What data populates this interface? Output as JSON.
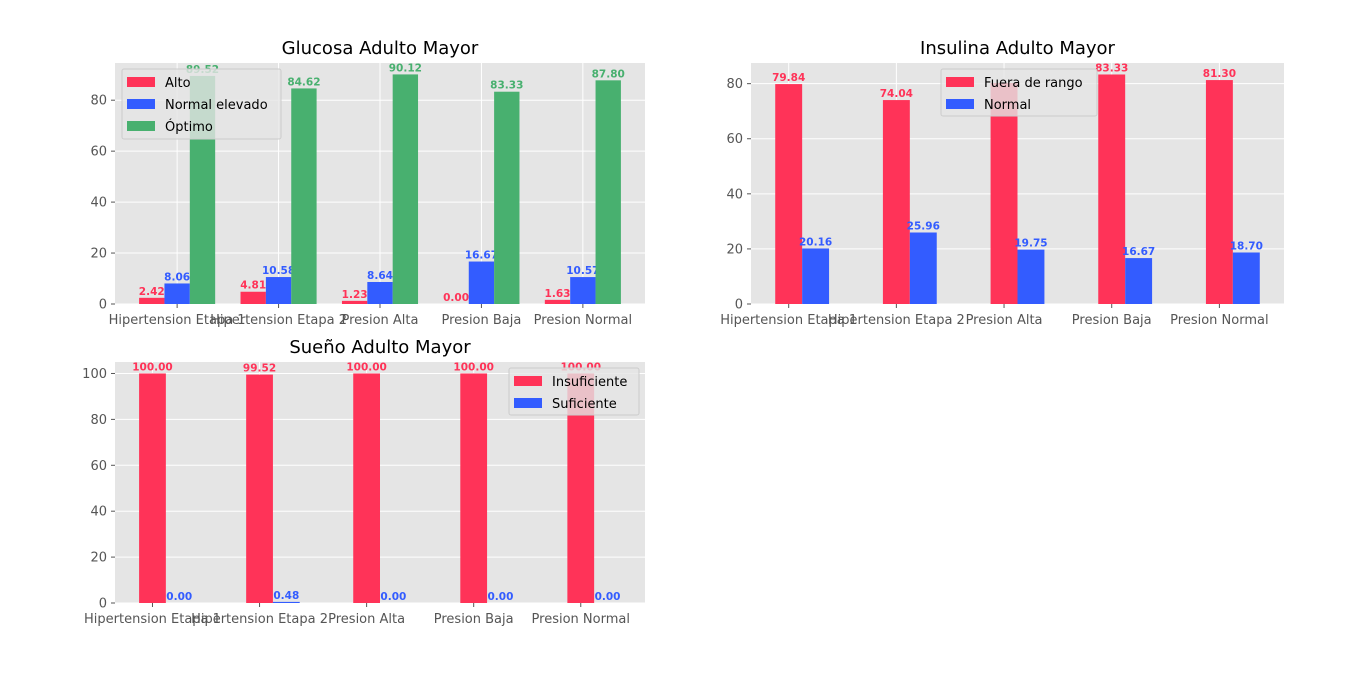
{
  "chart_data": [
    {
      "type": "bar",
      "title": "Glucosa Adulto Mayor",
      "categories": [
        "Hipertension Etapa 1",
        "Hipertension Etapa 2",
        "Presion Alta",
        "Presion Baja",
        "Presion Normal"
      ],
      "series": [
        {
          "name": "Alto",
          "color": "#ff3358",
          "values": [
            2.42,
            4.81,
            1.23,
            0.0,
            1.63
          ],
          "labels": [
            "2.42",
            "4.81",
            "1.23",
            "0.00",
            "1.63"
          ]
        },
        {
          "name": "Normal elevado",
          "color": "#335cff",
          "values": [
            8.06,
            10.58,
            8.64,
            16.67,
            10.57
          ],
          "labels": [
            "8.06",
            "10.58",
            "8.64",
            "16.67",
            "10.57"
          ]
        },
        {
          "name": "Óptimo",
          "color": "#48b06f",
          "values": [
            89.52,
            84.62,
            90.12,
            83.33,
            87.8
          ],
          "labels": [
            "89.52",
            "84.62",
            "90.12",
            "83.33",
            "87.80"
          ]
        }
      ],
      "ylim": [
        0,
        94.6
      ],
      "yticks": [
        0,
        20,
        40,
        60,
        80
      ],
      "grid": true,
      "legend_position": "top-left"
    },
    {
      "type": "bar",
      "title": "Insulina Adulto Mayor",
      "categories": [
        "Hipertension Etapa 1",
        "Hipertension Etapa 2",
        "Presion Alta",
        "Presion Baja",
        "Presion Normal"
      ],
      "series": [
        {
          "name": "Fuera de rango",
          "color": "#ff3358",
          "values": [
            79.84,
            74.04,
            80.25,
            83.33,
            81.3
          ],
          "labels": [
            "79.84",
            "74.04",
            "",
            "83.33",
            "81.30"
          ]
        },
        {
          "name": "Normal",
          "color": "#335cff",
          "values": [
            20.16,
            25.96,
            19.75,
            16.67,
            18.7
          ],
          "labels": [
            "20.16",
            "25.96",
            "19.75",
            "16.67",
            "18.70"
          ]
        }
      ],
      "ylim": [
        0,
        87.5
      ],
      "yticks": [
        0,
        20,
        40,
        60,
        80
      ],
      "grid": true,
      "legend_position": "top-center"
    },
    {
      "type": "bar",
      "title": "Sueño Adulto Mayor",
      "categories": [
        "Hipertension Etapa 1",
        "Hipertension Etapa 2",
        "Presion Alta",
        "Presion Baja",
        "Presion Normal"
      ],
      "series": [
        {
          "name": "Insuficiente",
          "color": "#ff3358",
          "values": [
            100.0,
            99.52,
            100.0,
            100.0,
            100.0
          ],
          "labels": [
            "100.00",
            "99.52",
            "100.00",
            "100.00",
            "100.00"
          ]
        },
        {
          "name": "Suficiente",
          "color": "#335cff",
          "values": [
            0.0,
            0.48,
            0.0,
            0.0,
            0.0
          ],
          "labels": [
            "0.00",
            "0.48",
            "0.00",
            "0.00",
            "0.00"
          ]
        }
      ],
      "ylim": [
        0,
        105
      ],
      "yticks": [
        0,
        20,
        40,
        60,
        80,
        100
      ],
      "grid": true,
      "legend_position": "top-right"
    }
  ]
}
